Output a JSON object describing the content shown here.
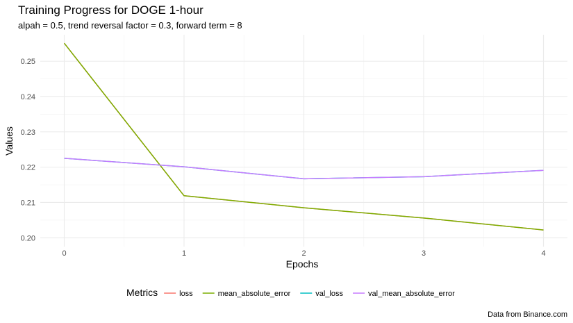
{
  "chart_data": {
    "type": "line",
    "title": "Training Progress for DOGE 1-hour",
    "subtitle": "alpah = 0.5, trend reversal factor = 0.3, forward term = 8",
    "xlabel": "Epochs",
    "ylabel": "Values",
    "caption": "Data from Binance.com",
    "x": [
      0,
      1,
      2,
      3,
      4
    ],
    "x_ticks": [
      0,
      1,
      2,
      3,
      4
    ],
    "y_ticks": [
      0.2,
      0.21,
      0.22,
      0.23,
      0.24,
      0.25
    ],
    "y_tick_labels": [
      "0.20",
      "0.21",
      "0.22",
      "0.23",
      "0.24",
      "0.25"
    ],
    "xlim": [
      -0.2,
      4.2
    ],
    "ylim": [
      0.1975,
      0.2575
    ],
    "grid": true,
    "legend": {
      "title": "Metrics",
      "position": "bottom"
    },
    "series": [
      {
        "name": "loss",
        "color": "#F8766D",
        "values": [
          0.2551,
          0.2119,
          0.2085,
          0.2056,
          0.2022
        ]
      },
      {
        "name": "mean_absolute_error",
        "color": "#7CAE00",
        "values": [
          0.2551,
          0.2119,
          0.2085,
          0.2056,
          0.2022
        ]
      },
      {
        "name": "val_loss",
        "color": "#00BFC4",
        "values": [
          0.2225,
          0.2201,
          0.2167,
          0.2173,
          0.2191
        ]
      },
      {
        "name": "val_mean_absolute_error",
        "color": "#C77CFF",
        "values": [
          0.2225,
          0.2201,
          0.2167,
          0.2173,
          0.2191
        ]
      }
    ]
  }
}
